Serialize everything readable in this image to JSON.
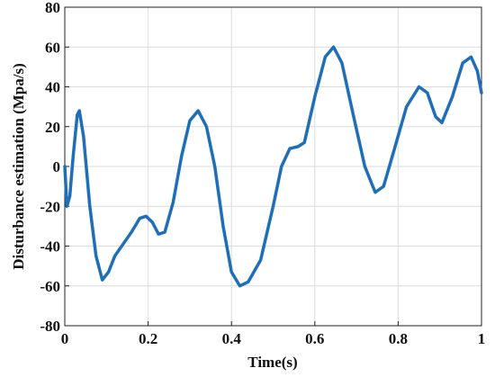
{
  "chart_data": {
    "type": "line",
    "xlabel": "Time(s)",
    "ylabel": "Disturbance estimation (Mpa/s)",
    "xlim": [
      0,
      1
    ],
    "ylim": [
      -80,
      80
    ],
    "xticks": [
      0,
      0.2,
      0.4,
      0.6,
      0.8,
      1
    ],
    "yticks": [
      -80,
      -60,
      -40,
      -20,
      0,
      20,
      40,
      60,
      80
    ],
    "grid": true,
    "x": [
      0,
      0.005,
      0.012,
      0.02,
      0.03,
      0.035,
      0.045,
      0.06,
      0.075,
      0.09,
      0.105,
      0.12,
      0.14,
      0.16,
      0.18,
      0.195,
      0.21,
      0.225,
      0.24,
      0.26,
      0.28,
      0.3,
      0.32,
      0.34,
      0.36,
      0.38,
      0.4,
      0.42,
      0.44,
      0.47,
      0.5,
      0.52,
      0.54,
      0.56,
      0.575,
      0.6,
      0.625,
      0.645,
      0.665,
      0.69,
      0.72,
      0.745,
      0.765,
      0.79,
      0.82,
      0.85,
      0.87,
      0.89,
      0.905,
      0.93,
      0.955,
      0.975,
      0.99,
      1
    ],
    "series": [
      {
        "color": "#1f6fb8",
        "values": [
          0,
          -20,
          -15,
          5,
          26,
          28,
          15,
          -20,
          -45,
          -57,
          -53,
          -45,
          -39,
          -33,
          -26,
          -25,
          -28,
          -34,
          -33,
          -18,
          5,
          23,
          28,
          20,
          0,
          -30,
          -53,
          -60,
          -58,
          -47,
          -20,
          0,
          9,
          10,
          12,
          35,
          55,
          60,
          52,
          28,
          0,
          -13,
          -10,
          8,
          30,
          40,
          37,
          25,
          22,
          35,
          52,
          55,
          48,
          37
        ]
      }
    ]
  }
}
